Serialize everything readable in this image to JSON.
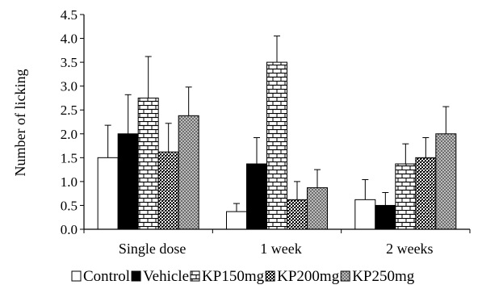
{
  "chart_data": {
    "type": "bar",
    "title": "",
    "xlabel": "",
    "ylabel": "Number of licking",
    "ylim": [
      0,
      4.5
    ],
    "y_ticks": [
      "0.0",
      "0.5",
      "1.0",
      "1.5",
      "2.0",
      "2.5",
      "3.0",
      "3.5",
      "4.0",
      "4.5"
    ],
    "grid": false,
    "legend_position": "bottom",
    "categories": [
      "Single dose",
      "1 week",
      "2 weeks"
    ],
    "series": [
      {
        "name": "Control",
        "pattern": "white",
        "values": [
          1.5,
          0.37,
          0.62
        ],
        "errors": [
          0.68,
          0.17,
          0.42
        ]
      },
      {
        "name": "Vehicle",
        "pattern": "black",
        "values": [
          2.0,
          1.37,
          0.5
        ],
        "errors": [
          0.82,
          0.55,
          0.27
        ]
      },
      {
        "name": "KP150mg",
        "pattern": "bricks",
        "values": [
          2.75,
          3.5,
          1.37
        ],
        "errors": [
          0.87,
          0.55,
          0.42
        ]
      },
      {
        "name": "KP200mg",
        "pattern": "dense-dots",
        "values": [
          1.62,
          0.62,
          1.5
        ],
        "errors": [
          0.6,
          0.38,
          0.42
        ]
      },
      {
        "name": "KP250mg",
        "pattern": "gray-grid",
        "values": [
          2.38,
          0.87,
          2.0
        ],
        "errors": [
          0.6,
          0.38,
          0.57
        ]
      }
    ]
  }
}
